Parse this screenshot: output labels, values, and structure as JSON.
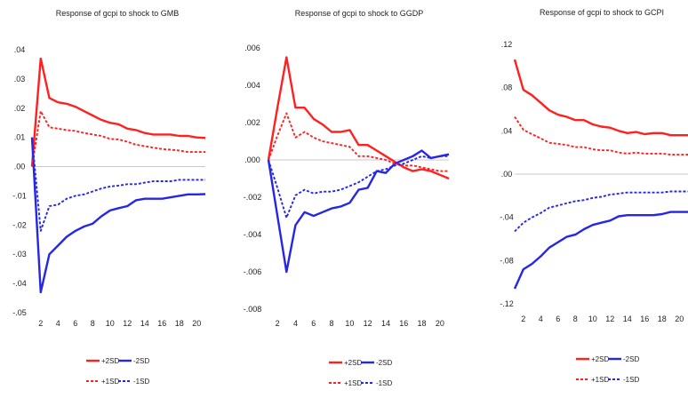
{
  "colors": {
    "red": "#ff2020",
    "blue": "#2626e6",
    "zero_line": "#c8c8c8"
  },
  "chart_data": [
    {
      "type": "line",
      "title": "Response of gcpi to shock to GMB",
      "ylim": [
        -0.05,
        0.04
      ],
      "yticks": [
        ".04",
        ".03",
        ".02",
        ".01",
        ".00",
        "-.01",
        "-.02",
        "-.03",
        "-.04",
        "-.05"
      ],
      "ytick_values": [
        0.04,
        0.03,
        0.02,
        0.01,
        0.0,
        -0.01,
        -0.02,
        -0.03,
        -0.04,
        -0.05
      ],
      "xticks": [
        "2",
        "4",
        "6",
        "8",
        "10",
        "12",
        "14",
        "16",
        "18",
        "20"
      ],
      "x": [
        1,
        2,
        3,
        4,
        5,
        6,
        7,
        8,
        9,
        10,
        11,
        12,
        13,
        14,
        15,
        16,
        17,
        18,
        19,
        20,
        21
      ],
      "grid": false,
      "legend": [
        "+2SD",
        "-2SD",
        "+1SD",
        "-1SD"
      ],
      "series": [
        {
          "name": "+2SD",
          "color": "red",
          "style": "solid",
          "values": [
            0.0,
            0.037,
            0.0235,
            0.022,
            0.0215,
            0.0205,
            0.019,
            0.0175,
            0.016,
            0.015,
            0.0145,
            0.013,
            0.0125,
            0.0115,
            0.011,
            0.011,
            0.011,
            0.0105,
            0.0105,
            0.01,
            0.0098
          ]
        },
        {
          "name": "-2SD",
          "color": "blue",
          "style": "solid",
          "values": [
            0.01,
            -0.043,
            -0.03,
            -0.027,
            -0.024,
            -0.022,
            -0.0205,
            -0.0195,
            -0.017,
            -0.015,
            -0.0142,
            -0.0135,
            -0.0115,
            -0.011,
            -0.011,
            -0.011,
            -0.0105,
            -0.01,
            -0.0095,
            -0.0095,
            -0.0094
          ]
        },
        {
          "name": "+1SD",
          "color": "red",
          "style": "dashed",
          "values": [
            0.0,
            0.019,
            0.0135,
            0.013,
            0.0125,
            0.0122,
            0.0115,
            0.011,
            0.0105,
            0.0095,
            0.0093,
            0.0085,
            0.0075,
            0.007,
            0.0065,
            0.006,
            0.0058,
            0.0055,
            0.005,
            0.005,
            0.005
          ]
        },
        {
          "name": "-1SD",
          "color": "blue",
          "style": "dashed",
          "values": [
            0.01,
            -0.022,
            -0.0135,
            -0.013,
            -0.011,
            -0.01,
            -0.0095,
            -0.0085,
            -0.0075,
            -0.0068,
            -0.0065,
            -0.006,
            -0.006,
            -0.0055,
            -0.005,
            -0.005,
            -0.005,
            -0.0045,
            -0.0045,
            -0.0045,
            -0.0045
          ]
        }
      ]
    },
    {
      "type": "line",
      "title": "Response of gcpi to shock to GGDP",
      "ylim": [
        -0.008,
        0.006
      ],
      "yticks": [
        ".006",
        ".004",
        ".002",
        ".000",
        "-.002",
        "-.004",
        "-.006",
        "-.008"
      ],
      "ytick_values": [
        0.006,
        0.004,
        0.002,
        0.0,
        -0.002,
        -0.004,
        -0.006,
        -0.008
      ],
      "xticks": [
        "2",
        "4",
        "6",
        "8",
        "10",
        "12",
        "14",
        "16",
        "18",
        "20"
      ],
      "x": [
        1,
        2,
        3,
        4,
        5,
        6,
        7,
        8,
        9,
        10,
        11,
        12,
        13,
        14,
        15,
        16,
        17,
        18,
        19,
        20,
        21
      ],
      "grid": false,
      "legend": [
        "+2SD",
        "-2SD",
        "+1SD",
        "-1SD"
      ],
      "series": [
        {
          "name": "+2SD",
          "color": "red",
          "style": "solid",
          "values": [
            0.0,
            0.0028,
            0.0055,
            0.0028,
            0.0028,
            0.0022,
            0.0019,
            0.0015,
            0.0015,
            0.0016,
            0.0008,
            0.0008,
            0.0005,
            0.0002,
            -0.0001,
            -0.0004,
            -0.0006,
            -0.0005,
            -0.0006,
            -0.0008,
            -0.001
          ]
        },
        {
          "name": "-2SD",
          "color": "blue",
          "style": "solid",
          "values": [
            0.0,
            -0.003,
            -0.006,
            -0.0035,
            -0.0028,
            -0.003,
            -0.0028,
            -0.0026,
            -0.0025,
            -0.0023,
            -0.0016,
            -0.0015,
            -0.0006,
            -0.0007,
            -0.0002,
            0.0,
            0.0002,
            0.0005,
            0.0001,
            0.0002,
            0.0003
          ]
        },
        {
          "name": "+1SD",
          "color": "red",
          "style": "dashed",
          "values": [
            0.0,
            0.0013,
            0.0025,
            0.0012,
            0.0015,
            0.0012,
            0.001,
            0.0009,
            0.0008,
            0.0007,
            0.0002,
            0.0002,
            0.0001,
            0.0,
            -0.0002,
            -0.0003,
            -0.0003,
            -0.0004,
            -0.0005,
            -0.0006,
            -0.0006
          ]
        },
        {
          "name": "-1SD",
          "color": "blue",
          "style": "dashed",
          "values": [
            0.0,
            -0.0015,
            -0.0031,
            -0.0019,
            -0.0016,
            -0.0018,
            -0.0017,
            -0.0017,
            -0.0016,
            -0.0014,
            -0.0012,
            -0.0009,
            -0.0006,
            -0.0005,
            -0.0003,
            -0.0002,
            0.0,
            0.0002,
            0.0001,
            0.0002,
            0.0002
          ]
        }
      ]
    },
    {
      "type": "line",
      "title": "Response of gcpi to shock to GCPI",
      "ylim": [
        -0.12,
        0.12
      ],
      "yticks": [
        ".12",
        ".08",
        ".04",
        ".00",
        "-.04",
        "-.08",
        "-.12"
      ],
      "ytick_values": [
        0.12,
        0.08,
        0.04,
        0.0,
        -0.04,
        -0.08,
        -0.12
      ],
      "xticks": [
        "2",
        "4",
        "6",
        "8",
        "10",
        "12",
        "14",
        "16",
        "18",
        "20"
      ],
      "x": [
        1,
        2,
        3,
        4,
        5,
        6,
        7,
        8,
        9,
        10,
        11,
        12,
        13,
        14,
        15,
        16,
        17,
        18,
        19,
        20,
        21
      ],
      "grid": false,
      "legend": [
        "+2SD",
        "-2SD",
        "+1SD",
        "-1SD"
      ],
      "series": [
        {
          "name": "+2SD",
          "color": "red",
          "style": "solid",
          "values": [
            0.106,
            0.078,
            0.073,
            0.066,
            0.059,
            0.055,
            0.053,
            0.05,
            0.05,
            0.046,
            0.044,
            0.043,
            0.04,
            0.038,
            0.039,
            0.037,
            0.038,
            0.038,
            0.036,
            0.036,
            0.036
          ]
        },
        {
          "name": "-2SD",
          "color": "blue",
          "style": "solid",
          "values": [
            -0.106,
            -0.088,
            -0.083,
            -0.076,
            -0.068,
            -0.063,
            -0.058,
            -0.056,
            -0.051,
            -0.047,
            -0.045,
            -0.043,
            -0.039,
            -0.038,
            -0.038,
            -0.038,
            -0.038,
            -0.037,
            -0.035,
            -0.035,
            -0.035
          ]
        },
        {
          "name": "+1SD",
          "color": "red",
          "style": "dashed",
          "values": [
            0.053,
            0.041,
            0.037,
            0.033,
            0.029,
            0.028,
            0.027,
            0.025,
            0.025,
            0.023,
            0.022,
            0.022,
            0.02,
            0.019,
            0.02,
            0.019,
            0.019,
            0.019,
            0.018,
            0.018,
            0.018
          ]
        },
        {
          "name": "-1SD",
          "color": "blue",
          "style": "dashed",
          "values": [
            -0.053,
            -0.045,
            -0.04,
            -0.036,
            -0.031,
            -0.029,
            -0.027,
            -0.025,
            -0.024,
            -0.022,
            -0.021,
            -0.019,
            -0.018,
            -0.017,
            -0.017,
            -0.017,
            -0.017,
            -0.017,
            -0.016,
            -0.016,
            -0.016
          ]
        }
      ]
    }
  ]
}
